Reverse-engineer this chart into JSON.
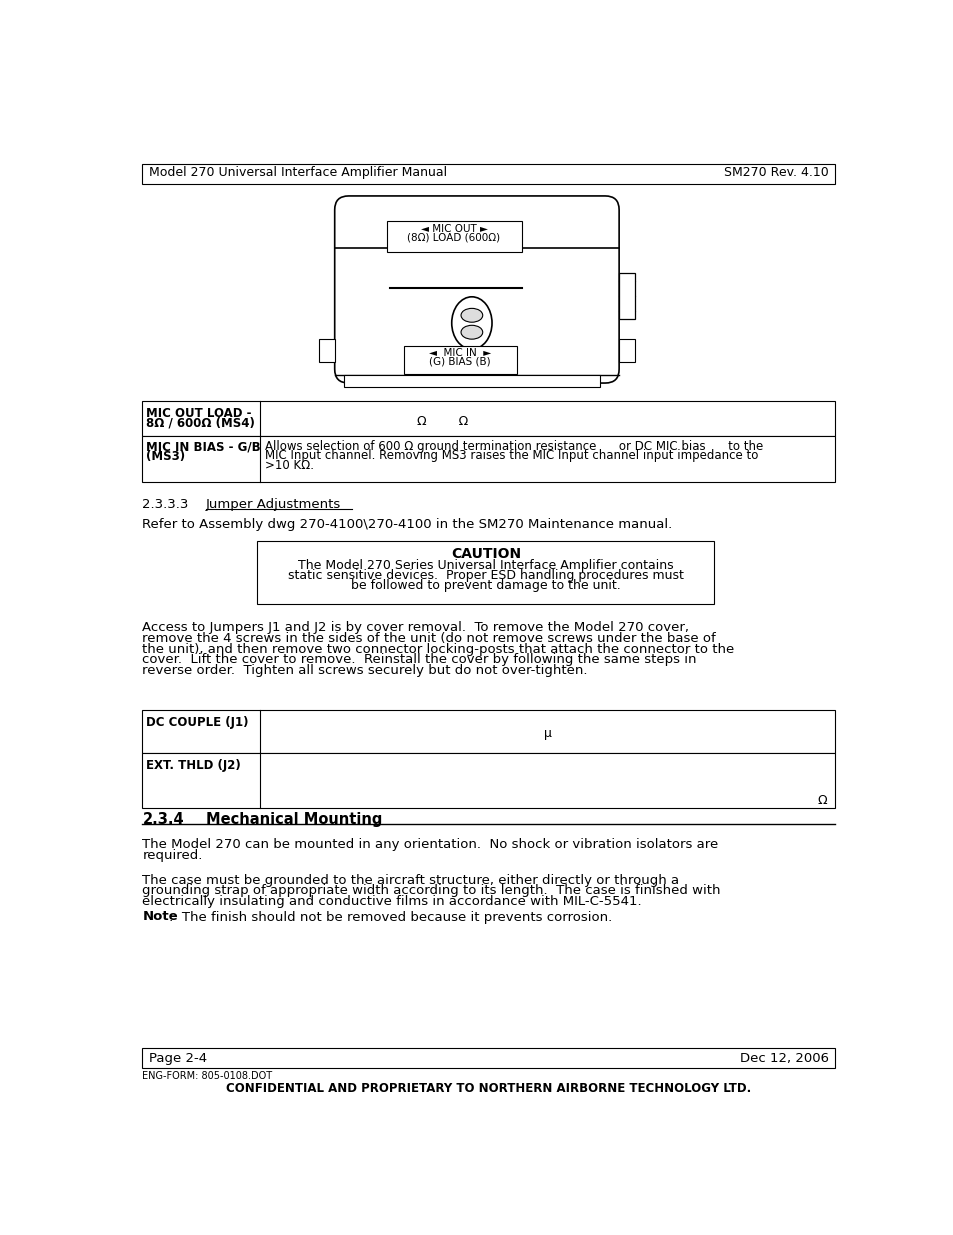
{
  "header_left": "Model 270 Universal Interface Amplifier Manual",
  "header_right": "SM270 Rev. 4.10",
  "footer_left": "Page 2-4",
  "footer_right": "Dec 12, 2006",
  "footer_form": "ENG-FORM: 805-0108.DOT",
  "footer_confidential": "CONFIDENTIAL AND PROPRIETARY TO NORTHERN AIRBORNE TECHNOLOGY LTD.",
  "section_233": "2.3.3.3",
  "section_233_title": "Jumper Adjustments",
  "section_234": "2.3.4",
  "section_234_title": "Mechanical Mounting",
  "ref_text": "Refer to Assembly dwg 270-4100\\270-4100 in the SM270 Maintenance manual.",
  "caution_title": "CAUTION",
  "caution_line1": "The Model 270 Series Universal Interface Amplifier contains",
  "caution_line2": "static sensitive devices.  Proper ESD handling procedures must",
  "caution_line3": "be followed to prevent damage to the unit.",
  "access_line1": "Access to Jumpers J1 and J2 is by cover removal.  To remove the Model 270 cover,",
  "access_line2": "remove the 4 screws in the sides of the unit (do not remove screws under the base of",
  "access_line3": "the unit), and then remove two connector locking-posts that attach the connector to the",
  "access_line4": "cover.  Lift the cover to remove.  Reinstall the cover by following the same steps in",
  "access_line5": "reverse order.  Tighten all screws securely but do not over-tighten.",
  "t1r1c1_line1": "MIC OUT LOAD -",
  "t1r1c1_line2": "8Ω / 600Ω (MS4)",
  "t1r1c2": "Ω        Ω",
  "t1r2c1_line1": "MIC IN BIAS - G/B",
  "t1r2c1_line2": "(MS3)",
  "t1r2c2_line1": "Allows selection of 600 Ω ground termination resistance      or DC MIC bias      to the",
  "t1r2c2_line2": "MIC Input channel. Removing MS3 raises the MIC Input channel input impedance to",
  "t1r2c2_line3": ">10 KΩ.",
  "t2r1c1": "DC COUPLE (J1)",
  "t2r1c2": "μ",
  "t2r2c1": "EXT. THLD (J2)",
  "t2r2c2": "Ω",
  "mount_line1": "The Model 270 can be mounted in any orientation.  No shock or vibration isolators are",
  "mount_line2": "required.",
  "mount2_line1": "The case must be grounded to the aircraft structure, either directly or through a",
  "mount2_line2": "grounding strap of appropriate width according to its length.  The case is finished with",
  "mount2_line3": "electrically insulating and conductive films in accordance with MIL-C-5541.",
  "note_bold": "Note",
  "note_rest": ":  The finish should not be removed because it prevents corrosion.",
  "bg_color": "#ffffff"
}
